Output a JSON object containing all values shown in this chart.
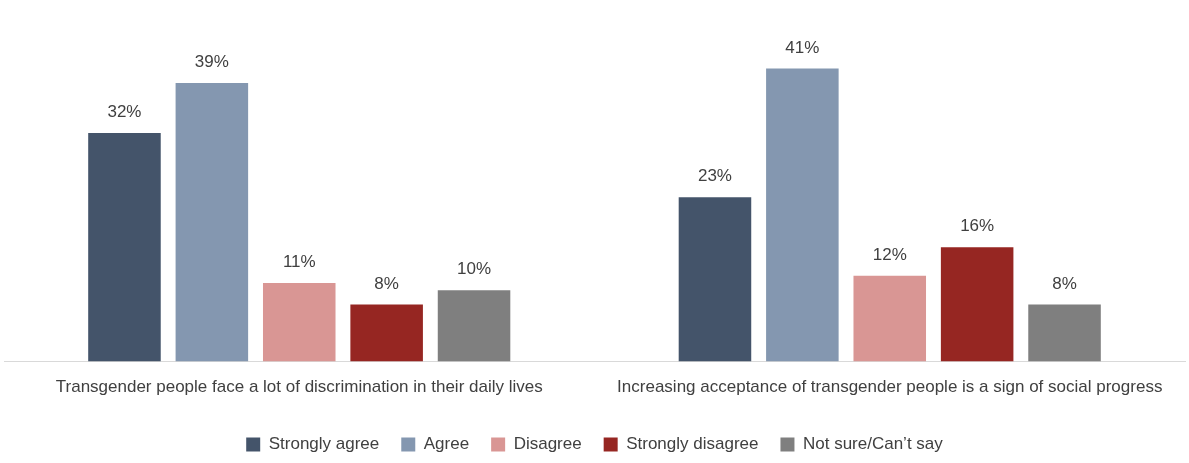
{
  "chart_data": {
    "type": "bar",
    "categories": [
      "Transgender people face a lot of discrimination in their daily lives",
      "Increasing acceptance of transgender people is a sign of social progress"
    ],
    "series": [
      {
        "name": "Strongly agree",
        "color": "#44546a",
        "values": [
          32,
          23
        ],
        "value_labels": [
          "32%",
          "23%"
        ]
      },
      {
        "name": "Agree",
        "color": "#8497b0",
        "values": [
          39,
          41
        ],
        "value_labels": [
          "39%",
          "41%"
        ]
      },
      {
        "name": "Disagree",
        "color": "#d99694",
        "values": [
          11,
          12
        ],
        "value_labels": [
          "11%",
          "12%"
        ]
      },
      {
        "name": "Strongly disagree",
        "color": "#962622",
        "values": [
          8,
          16
        ],
        "value_labels": [
          "8%",
          "16%"
        ]
      },
      {
        "name": "Not sure/Can’t say",
        "color": "#7f7f7f",
        "values": [
          10,
          8
        ],
        "value_labels": [
          "10%",
          "8%"
        ]
      }
    ],
    "legend": "bottom",
    "grid": false
  }
}
